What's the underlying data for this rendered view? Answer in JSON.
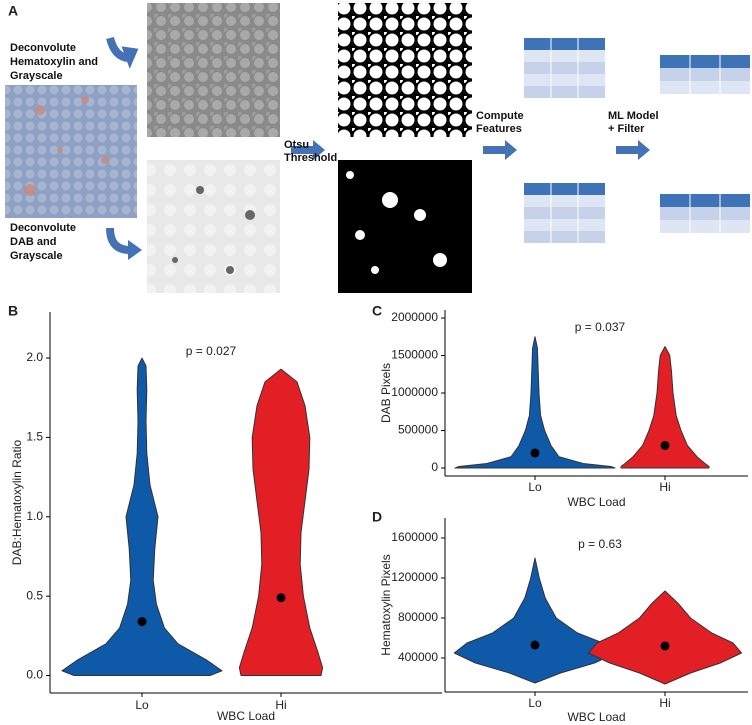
{
  "diagram": {
    "label": "A",
    "hema": [
      "Deconvolute",
      "Hematoxylin and",
      "Grayscale"
    ],
    "dab": [
      "Deconvolute",
      "DAB and",
      "Grayscale"
    ],
    "otsu": [
      "Otsu",
      "Threshold"
    ],
    "features": [
      "Compute",
      "Features"
    ],
    "ml": [
      "ML Model",
      "+ Filter"
    ]
  },
  "chart_data": [
    {
      "type": "violin",
      "panel": "B",
      "annotation": "p = 0.027",
      "xlabel": "WBC Load",
      "ylabel": "DAB:Hematoxylin Ratio",
      "categories": [
        "Lo",
        "Hi"
      ],
      "colors": [
        "#0f5aa8",
        "#e31f26"
      ],
      "values": [
        0.34,
        0.49
      ],
      "ylim": [
        -0.11,
        2.29
      ],
      "yticks": [
        {
          "value": 0,
          "label": "0.0"
        },
        {
          "value": 0.5,
          "label": "0.5"
        },
        {
          "value": 1,
          "label": "1.0"
        },
        {
          "value": 1.5,
          "label": "1.5"
        },
        {
          "value": 2,
          "label": "2.0"
        }
      ],
      "density": [
        {
          "y": [
            0,
            0.03,
            0.1,
            0.2,
            0.3,
            0.45,
            0.6,
            0.8,
            1.0,
            1.2,
            1.4,
            1.6,
            1.8,
            1.95,
            2.0
          ],
          "d": [
            0.85,
            1,
            0.8,
            0.45,
            0.28,
            0.18,
            0.14,
            0.16,
            0.2,
            0.1,
            0.06,
            0.05,
            0.06,
            0.05,
            0
          ]
        },
        {
          "y": [
            0,
            0.05,
            0.15,
            0.3,
            0.5,
            0.7,
            0.9,
            1.1,
            1.3,
            1.5,
            1.7,
            1.85,
            1.93
          ],
          "d": [
            0.5,
            0.52,
            0.46,
            0.36,
            0.28,
            0.24,
            0.25,
            0.3,
            0.35,
            0.36,
            0.3,
            0.2,
            0
          ]
        }
      ]
    },
    {
      "type": "violin",
      "panel": "C",
      "annotation": "p = 0.037",
      "xlabel": "WBC Load",
      "ylabel": "DAB Pixels",
      "categories": [
        "Lo",
        "Hi"
      ],
      "colors": [
        "#0f5aa8",
        "#e31f26"
      ],
      "values": [
        200000,
        300000
      ],
      "ylim": [
        -107000,
        2107000
      ],
      "yticks": [
        0,
        500000,
        1000000,
        1500000,
        2000000
      ],
      "density": [
        {
          "y": [
            0,
            20000,
            60000,
            150000,
            300000,
            500000,
            700000,
            1000000,
            1300000,
            1600000,
            1750000
          ],
          "d": [
            1,
            0.95,
            0.6,
            0.3,
            0.2,
            0.12,
            0.07,
            0.05,
            0.04,
            0.03,
            0
          ]
        },
        {
          "y": [
            0,
            20000,
            60000,
            150000,
            300000,
            500000,
            700000,
            1000000,
            1300000,
            1500000,
            1620000
          ],
          "d": [
            0.55,
            0.55,
            0.5,
            0.4,
            0.28,
            0.2,
            0.14,
            0.1,
            0.08,
            0.06,
            0
          ]
        }
      ]
    },
    {
      "type": "violin",
      "panel": "D",
      "annotation": "p = 0.63",
      "xlabel": "WBC Load",
      "ylabel": "Hematoxylin Pixels",
      "categories": [
        "Lo",
        "Hi"
      ],
      "colors": [
        "#0f5aa8",
        "#e31f26"
      ],
      "values": [
        530000,
        520000
      ],
      "ylim": [
        60000,
        1800000
      ],
      "yticks": [
        400000,
        800000,
        1200000,
        1600000
      ],
      "density": [
        {
          "y": [
            150000,
            250000,
            350000,
            450000,
            550000,
            650000,
            800000,
            1000000,
            1200000,
            1400000
          ],
          "d": [
            0,
            0.3,
            0.7,
            0.95,
            0.8,
            0.5,
            0.25,
            0.12,
            0.05,
            0
          ]
        },
        {
          "y": [
            140000,
            250000,
            350000,
            450000,
            550000,
            650000,
            800000,
            950000,
            1070000
          ],
          "d": [
            0,
            0.3,
            0.65,
            0.9,
            0.8,
            0.55,
            0.3,
            0.15,
            0
          ]
        }
      ]
    }
  ]
}
